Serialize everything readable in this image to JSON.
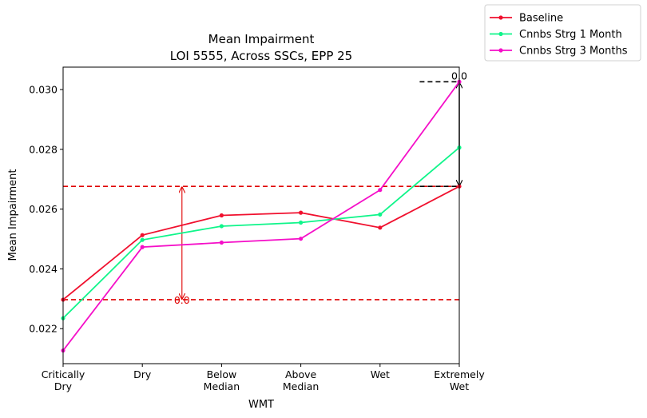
{
  "chart_data": {
    "type": "line",
    "title": "Mean Impairment",
    "subtitle": "LOI 5555, Across SSCs, EPP 25",
    "xlabel": "WMT",
    "ylabel": "Mean Impairment",
    "categories": [
      [
        "Critically",
        "Dry"
      ],
      [
        "Dry"
      ],
      [
        "Below",
        "Median"
      ],
      [
        "Above",
        "Median"
      ],
      [
        "Wet"
      ],
      [
        "Extremely",
        "Wet"
      ]
    ],
    "ylim": [
      0.02083,
      0.03075
    ],
    "yticks": [
      0.022,
      0.024,
      0.026,
      0.028,
      0.03
    ],
    "ytick_labels": [
      "0.022",
      "0.024",
      "0.026",
      "0.028",
      "0.030"
    ],
    "grid": false,
    "legend_position": "outside-top-right",
    "series": [
      {
        "name": "Baseline",
        "color": "#f0102e",
        "values": [
          0.02297,
          0.02513,
          0.02579,
          0.02588,
          0.02538,
          0.02676
        ]
      },
      {
        "name": "Cnnbs Strg 1 Month",
        "color": "#0ff58a",
        "values": [
          0.02235,
          0.02497,
          0.02543,
          0.02555,
          0.02582,
          0.02806
        ]
      },
      {
        "name": "Cnnbs Strg 3 Months",
        "color": "#f50fc8",
        "values": [
          0.02127,
          0.02473,
          0.02488,
          0.02501,
          0.02664,
          0.03026
        ]
      }
    ],
    "annotations": [
      {
        "type": "hline",
        "y": 0.02676,
        "color": "#e00000",
        "style": "dashed"
      },
      {
        "type": "hline",
        "y": 0.02297,
        "color": "#e00000",
        "style": "dashed"
      },
      {
        "type": "double-arrow",
        "x_pos": 1.5,
        "y1": 0.02676,
        "y2": 0.02297,
        "color": "#e00000",
        "label": "0.0"
      },
      {
        "type": "hline-segment",
        "x_from": 4.5,
        "x_to": 5.0,
        "y": 0.03026,
        "color": "#000000",
        "style": "dashed"
      },
      {
        "type": "hline-segment",
        "x_from": 4.5,
        "x_to": 5.0,
        "y": 0.02676,
        "color": "#000000",
        "style": "dashed"
      },
      {
        "type": "double-arrow",
        "x_pos": 5.0,
        "y1": 0.03026,
        "y2": 0.02676,
        "color": "#000000",
        "label": "0.0"
      }
    ]
  }
}
